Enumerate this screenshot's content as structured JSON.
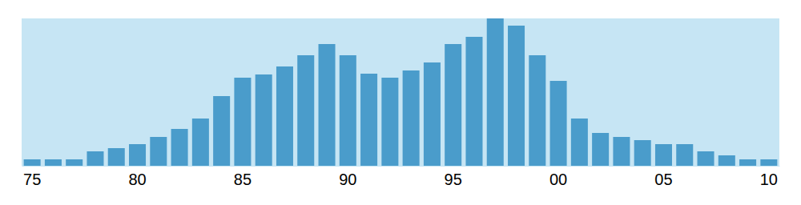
{
  "chart_data": {
    "type": "bar",
    "categories": [
      "75",
      null,
      null,
      null,
      null,
      "80",
      null,
      null,
      null,
      null,
      "85",
      null,
      null,
      null,
      null,
      "90",
      null,
      null,
      null,
      null,
      "95",
      null,
      null,
      null,
      null,
      "00",
      null,
      null,
      null,
      null,
      "05",
      null,
      null,
      null,
      null,
      "10"
    ],
    "values": [
      8,
      8,
      8,
      18,
      22,
      27,
      36,
      46,
      59,
      87,
      110,
      114,
      124,
      138,
      152,
      138,
      115,
      110,
      119,
      129,
      152,
      161,
      184,
      175,
      138,
      106,
      59,
      41,
      36,
      32,
      27,
      27,
      18,
      13,
      8,
      8
    ],
    "color": "#4a9ccb",
    "ylim": [
      0,
      184
    ],
    "tick_labels": "x"
  }
}
